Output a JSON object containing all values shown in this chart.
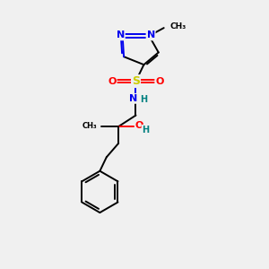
{
  "background_color": "#f0f0f0",
  "figsize": [
    3.0,
    3.0
  ],
  "dpi": 100,
  "colors": {
    "N": "#0000ee",
    "S": "#cccc00",
    "O": "#ff0000",
    "C": "#000000",
    "H": "#008080",
    "bond": "#000000"
  }
}
